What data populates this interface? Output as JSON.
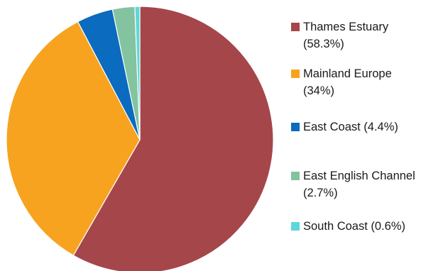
{
  "chart_data": {
    "type": "pie",
    "categories": [
      "Thames Estuary",
      "Mainland Europe",
      "East Coast",
      "East English Channel",
      "South Coast"
    ],
    "values": [
      58.3,
      34,
      4.4,
      2.7,
      0.6
    ],
    "colors": [
      "#a5464b",
      "#f7a31f",
      "#0a6bbf",
      "#84c3a0",
      "#5fd7d8"
    ],
    "legend": [
      {
        "label": "Thames Estuary",
        "pct": "(58.3%)",
        "color": "#a5464b"
      },
      {
        "label": "Mainland Europe",
        "pct": "(34%)",
        "color": "#f7a31f"
      },
      {
        "label": "East Coast (4.4%)",
        "pct": "",
        "color": "#0a6bbf"
      },
      {
        "label": "East English Channel",
        "pct": "(2.7%)",
        "color": "#84c3a0"
      },
      {
        "label": "South Coast (0.6%)",
        "pct": "",
        "color": "#5fd7d8"
      }
    ],
    "legend_position": "right",
    "start_angle": "top",
    "direction": "clockwise"
  }
}
